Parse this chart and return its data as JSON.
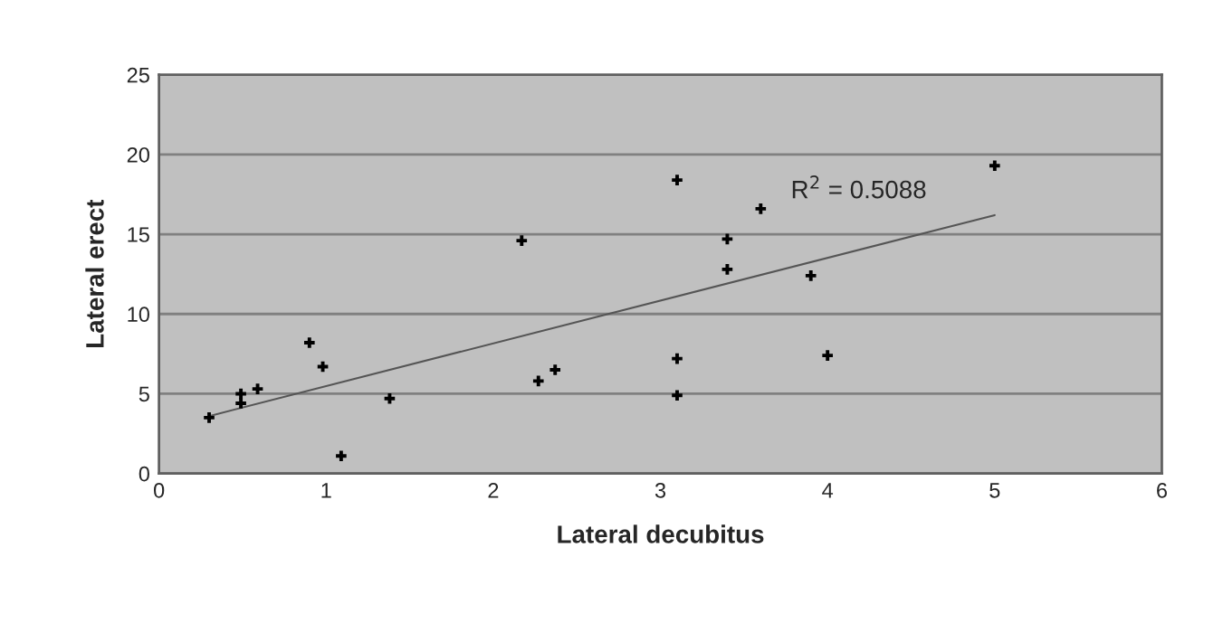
{
  "chart_data": {
    "type": "scatter",
    "xlabel": "Lateral decubitus",
    "ylabel": "Lateral erect",
    "xlim": [
      0,
      6
    ],
    "xticks": [
      0,
      1,
      2,
      3,
      4,
      5,
      6
    ],
    "ylim": [
      0,
      25
    ],
    "yticks": [
      0,
      5,
      10,
      15,
      20,
      25
    ],
    "grid": "y",
    "series": [
      {
        "marker": "cross",
        "color": "#000000",
        "x": [
          0.3,
          0.49,
          0.49,
          0.59,
          0.9,
          0.98,
          1.09,
          1.38,
          2.17,
          2.27,
          2.37,
          3.1,
          3.1,
          3.1,
          3.4,
          3.4,
          3.6,
          3.9,
          4.0,
          5.0
        ],
        "values": [
          3.5,
          4.4,
          5.0,
          5.3,
          8.2,
          6.7,
          1.1,
          4.7,
          14.6,
          5.8,
          6.5,
          18.4,
          7.2,
          4.9,
          14.7,
          12.8,
          16.6,
          12.4,
          7.4,
          19.3
        ]
      },
      {
        "type": "line",
        "marker": "none",
        "color": "#555555",
        "x": [
          0.3,
          5.0
        ],
        "values": [
          3.6,
          16.2
        ]
      }
    ],
    "annotations": [
      "R$^{2}$ = 0.5088"
    ]
  }
}
